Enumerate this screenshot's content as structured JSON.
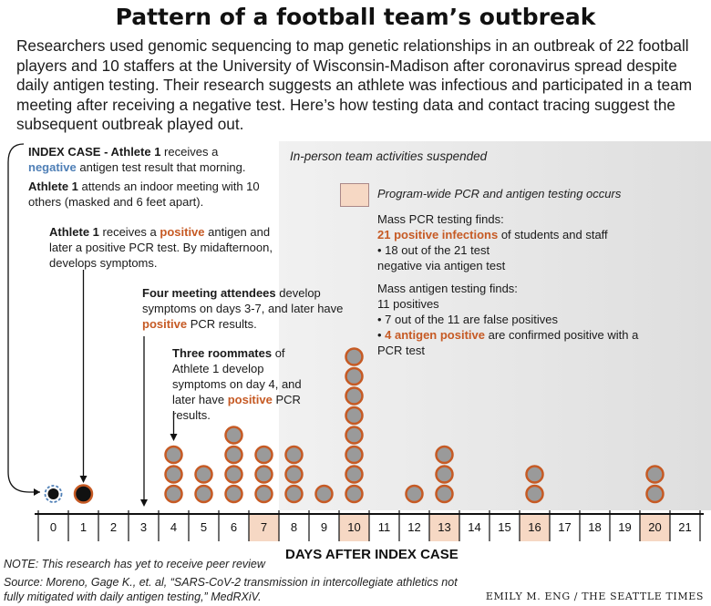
{
  "title": "Pattern of a football team’s outbreak",
  "intro": "Researchers used genomic sequencing to map genetic relationships in an outbreak of 22 football players and 10 staffers at the University of Wisconsin-Madison after coronavirus spread despite daily antigen testing. Their research suggests an athlete was infectious and participated in a team meeting after receiving a negative test. Here’s how testing data and contact tracing suggest the subsequent outbreak played out.",
  "annotations": {
    "index_case": {
      "bold": "INDEX CASE - Athlete 1",
      "text1": " receives a",
      "neg": "negative",
      "text2": " antigen test result that morning."
    },
    "meeting": {
      "bold": "Athlete 1",
      "text": " attends an indoor meeting with 10 others (masked and 6 feet apart)."
    },
    "positive": {
      "bold": "Athlete 1",
      "text1": " receives a ",
      "pos": "positive",
      "text2": " antigen and later a positive PCR test. By midafternoon, develops symptoms."
    },
    "attendees": {
      "bold": "Four meeting attendees",
      "text1": " develop symptoms on days 3-7, and later have ",
      "pos": "positive",
      "text2": " PCR results."
    },
    "roommates": {
      "bold": "Three roommates",
      "text1": " of Athlete 1 develop symptoms on day 4, and later have ",
      "pos": "positive",
      "text2": " PCR results."
    },
    "suspended": "In-person team activities suspended",
    "pcr_legend": "Program-wide PCR and antigen testing occurs",
    "mass_pcr": {
      "head": "Mass PCR testing finds:",
      "pos": "21 positive infections",
      "tail": " of students and staff",
      "bullet": "• 18 out of the 21 test negative via antigen test"
    },
    "mass_antigen": {
      "head": "Mass antigen testing finds:",
      "line1": "11 positives",
      "bullet1": "• 7 out of the 11 are false positives",
      "bullet2_pos": "4 antigen positive",
      "bullet2_text": " are confirmed positive with a PCR test"
    }
  },
  "axis_title": "DAYS AFTER INDEX CASE",
  "note": "NOTE: This research has yet to receive peer review",
  "source": "Source: Moreno, Gage K., et. al, “SARS-CoV-2 transmission in intercollegiate athletics not fully mitigated with daily antigen testing,” MedRXiV.",
  "credit": "EMILY M. ENG / THE SEATTLE TIMES",
  "colors": {
    "case_fill": "#9a9a9a",
    "case_ring": "#c65a24",
    "index_fill": "#111111",
    "pcr_highlight": "#f6d8c4",
    "negative": "#4f7fb6",
    "positive": "#c65a24"
  },
  "chart_data": {
    "type": "dot-timeline",
    "xlabel": "DAYS AFTER INDEX CASE",
    "days": [
      0,
      1,
      2,
      3,
      4,
      5,
      6,
      7,
      8,
      9,
      10,
      11,
      12,
      13,
      14,
      15,
      16,
      17,
      18,
      19,
      20,
      21
    ],
    "case_counts": [
      1,
      1,
      0,
      0,
      3,
      2,
      4,
      3,
      3,
      1,
      8,
      0,
      1,
      3,
      0,
      0,
      2,
      0,
      0,
      0,
      2,
      0
    ],
    "index_case_day": 0,
    "athlete1_positive_day": 1,
    "pcr_testing_days": [
      7,
      10,
      13,
      16,
      20
    ],
    "suspended_from_day": 7.5
  }
}
